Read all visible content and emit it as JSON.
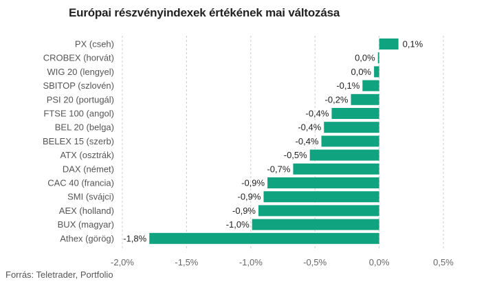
{
  "chart_data": {
    "type": "bar",
    "orientation": "horizontal",
    "title": "Európai részvényindexek értékének mai változása",
    "categories": [
      "PX (cseh)",
      "CROBEX (horvát)",
      "WIG 20 (lengyel)",
      "SBITOP (szlovén)",
      "PSI 20 (portugál)",
      "FTSE 100 (angol)",
      "BEL 20 (belga)",
      "BELEX 15 (szerb)",
      "ATX (osztrák)",
      "DAX (német)",
      "CAC 40 (francia)",
      "SMI (svájci)",
      "AEX (holland)",
      "BUX (magyar)",
      "Athex (görög)"
    ],
    "values": [
      0.15,
      -0.01,
      -0.04,
      -0.13,
      -0.22,
      -0.37,
      -0.43,
      -0.45,
      -0.54,
      -0.67,
      -0.87,
      -0.9,
      -0.94,
      -0.99,
      -1.79
    ],
    "value_labels": [
      "0,1%",
      "0,0%",
      "0,0%",
      "-0,1%",
      "-0,2%",
      "-0,4%",
      "-0,4%",
      "-0,4%",
      "-0,5%",
      "-0,7%",
      "-0,9%",
      "-0,9%",
      "-0,9%",
      "-1,0%",
      "-1,8%"
    ],
    "x_ticks": [
      -2.0,
      -1.5,
      -1.0,
      -0.5,
      0.0,
      0.5
    ],
    "x_tick_labels": [
      "-2,0%",
      "-1,5%",
      "-1,0%",
      "-0,5%",
      "0,0%",
      "0,5%"
    ],
    "xlim": [
      -2.0,
      0.5
    ],
    "grid": true,
    "legend": "none",
    "bar_color": "#0fa37f",
    "grid_color": "#cccccc"
  },
  "source": "Forrás: Teletrader, Portfolio"
}
